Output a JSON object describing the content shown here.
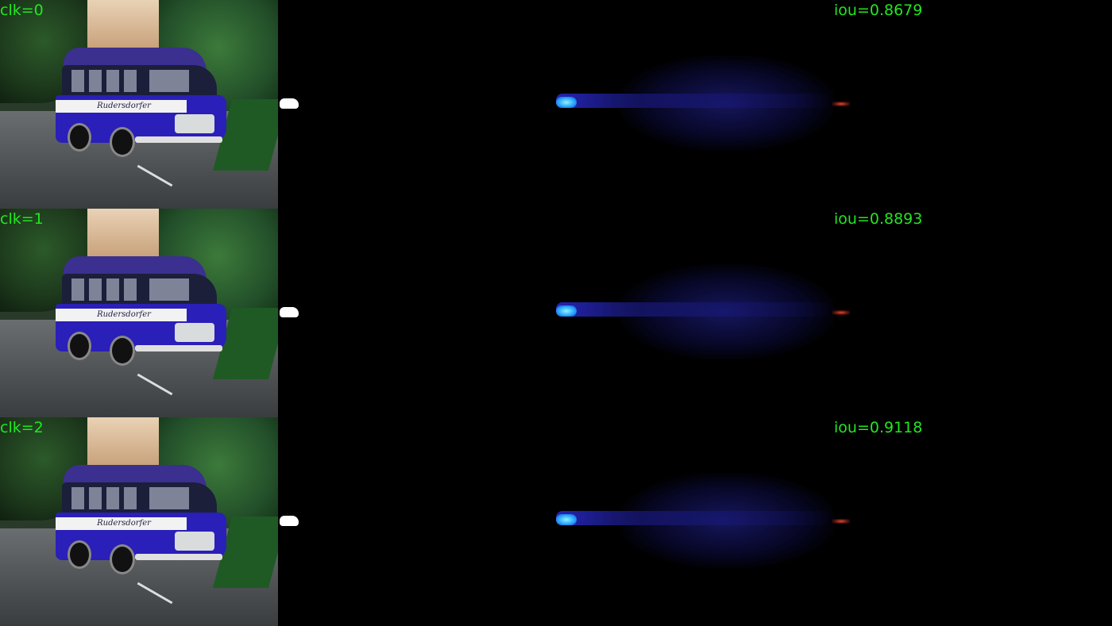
{
  "panels": [
    {
      "clk_label": "clk=0",
      "iou_label": "iou=0.8679"
    },
    {
      "clk_label": "clk=1",
      "iou_label": "iou=0.8893"
    },
    {
      "clk_label": "clk=2",
      "iou_label": "iou=0.9118"
    }
  ],
  "bus_logo_text": "Rudersdorfer",
  "colors": {
    "label_green": "#22e622",
    "background": "#000000",
    "heat_hot": "#8ff6ff",
    "heat_low": "#1a1a90",
    "heat_red": "#e04a2a"
  }
}
